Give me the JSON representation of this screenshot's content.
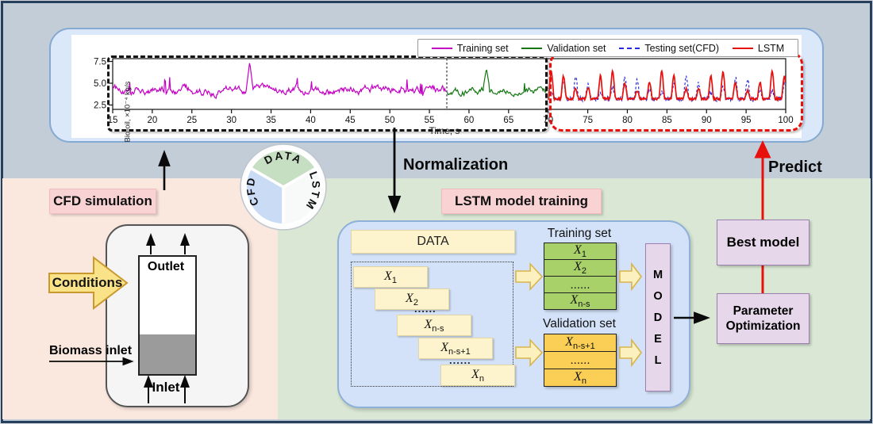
{
  "chart": {
    "ylabel": "Bio-oil, ×10⁻⁴ kg/s",
    "xlabel": "Time, s",
    "yticks": [
      {
        "label": "7.5",
        "value": 7.5
      },
      {
        "label": "5.0",
        "value": 5.0
      },
      {
        "label": "2.5",
        "value": 2.5
      }
    ],
    "xticks": [
      15,
      20,
      25,
      30,
      35,
      40,
      45,
      50,
      55,
      60,
      65,
      70,
      75,
      80,
      85,
      90,
      95,
      100
    ],
    "legend": [
      {
        "label": "Training set",
        "color": "#c400c4",
        "dash": false
      },
      {
        "label": "Validation set",
        "color": "#157815",
        "dash": false
      },
      {
        "label": "Testing set(CFD)",
        "color": "#2a2ae0",
        "dash": true
      },
      {
        "label": "LSTM",
        "color": "#e8100c",
        "dash": false
      }
    ],
    "chart_data": {
      "type": "line",
      "title": "",
      "xlabel": "Time, s",
      "ylabel": "Bio-oil, ×10⁻⁴ kg/s",
      "xlim": [
        15,
        100
      ],
      "ylim": [
        2.2,
        8.1
      ],
      "series": [
        {
          "name": "Training set",
          "color": "#c400c4",
          "x_range": [
            15,
            57.2
          ],
          "mean": 4.2,
          "noise": 0.6,
          "spike_x": 32.3,
          "spike_y": 7.45,
          "pattern": "noisy",
          "dash": false
        },
        {
          "name": "Validation set",
          "color": "#157815",
          "x_range": [
            57.2,
            70
          ],
          "mean": 4.15,
          "noise": 0.55,
          "spike_x": 62.2,
          "spike_y": 6.7,
          "pattern": "noisy",
          "dash": false
        },
        {
          "name": "Testing set(CFD)",
          "color": "#2a2ae0",
          "x_range": [
            70,
            100
          ],
          "base": 3.2,
          "amp": 2.35,
          "period": 1.55,
          "pattern": "periodic",
          "dash": true
        },
        {
          "name": "LSTM",
          "color": "#e8100c",
          "x_range": [
            70,
            100
          ],
          "base": 3.2,
          "amp": 2.85,
          "period": 1.55,
          "pattern": "periodic",
          "dash": false
        }
      ],
      "annotations": {
        "train_region": [
          15,
          70
        ],
        "test_region": [
          70,
          100
        ],
        "train_val_split": 57.2
      }
    }
  },
  "flow": {
    "cfd_section_label": "CFD simulation",
    "lstm_section_label": "LSTM model training",
    "normalization_label": "Normalization",
    "predict_label": "Predict",
    "conditions_label": "Conditions",
    "reactor": {
      "outlet": "Outlet",
      "inlet": "Inlet",
      "biomass": "Biomass inlet"
    },
    "pie": {
      "segments": [
        {
          "label": "DATA",
          "color": "#c6dec2"
        },
        {
          "label": "LSTM",
          "color": "#f8faf9"
        },
        {
          "label": "CFD",
          "color": "#cadcf5"
        }
      ]
    },
    "data_bar_label": "DATA",
    "window_bars": [
      {
        "b": "X",
        "s": "1"
      },
      {
        "b": "X",
        "s": "2"
      },
      {
        "dots": "......"
      },
      {
        "b": "X",
        "s": "n-s"
      },
      {
        "b": "X",
        "s": "n-s+1"
      },
      {
        "dots": "......"
      },
      {
        "b": "X",
        "s": "n"
      }
    ],
    "training_set": {
      "title": "Training set",
      "color": "#a8d169",
      "rows": [
        {
          "b": "X",
          "s": "1"
        },
        {
          "b": "X",
          "s": "2"
        },
        {
          "dots": "......"
        },
        {
          "b": "X",
          "s": "n-s"
        }
      ]
    },
    "validation_set": {
      "title": "Validation set",
      "color": "#fbce55",
      "rows": [
        {
          "b": "X",
          "s": "n-s+1"
        },
        {
          "dots": "......"
        },
        {
          "b": "X",
          "s": "n"
        }
      ]
    },
    "model_box_letters": "MODEL",
    "best_model_label": "Best model",
    "param_opt_label": "Parameter Optimization"
  },
  "colors": {
    "top_band": "#c2cdd8",
    "left_region": "#fae7de",
    "right_region": "#d9e7d4",
    "chart_container": "#dbe8fa",
    "train_container": "#d3e2f8",
    "bar_yellow": "#fdf3cd",
    "purple": "#e6d7ea",
    "pink_label": "#f9d2d4",
    "arrow_yellow": "#fae289",
    "red": "#e8100c"
  }
}
